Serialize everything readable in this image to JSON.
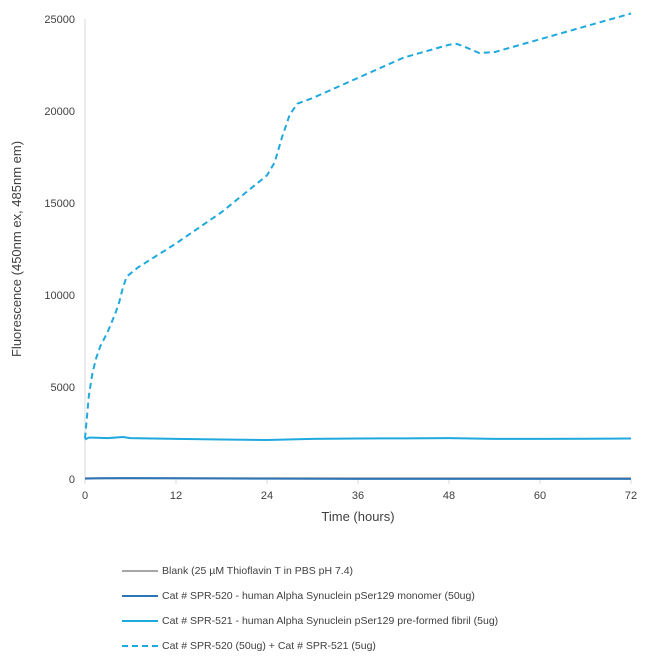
{
  "chart_data": {
    "type": "line",
    "xlabel": "Time (hours)",
    "ylabel": "Fluorescence (450nm ex, 485nm em)",
    "xlim": [
      0,
      72
    ],
    "ylim": [
      0,
      25000
    ],
    "xticks": [
      0,
      12,
      24,
      36,
      48,
      60,
      72
    ],
    "yticks": [
      0,
      5000,
      10000,
      15000,
      20000,
      25000
    ],
    "grid": false,
    "legend_position": "bottom",
    "series": [
      {
        "name": "Blank (25 µM Thioflavin T in PBS pH 7.4)",
        "color": "#a6a6a6",
        "dash": "solid",
        "points": [
          [
            0,
            40
          ],
          [
            12,
            40
          ],
          [
            24,
            40
          ],
          [
            36,
            40
          ],
          [
            48,
            40
          ],
          [
            60,
            40
          ],
          [
            72,
            40
          ]
        ]
      },
      {
        "name": "Cat # SPR-520 - human Alpha Synuclein pSer129 monomer (50ug)",
        "color": "#2e75b6",
        "dash": "solid",
        "points": [
          [
            0,
            20
          ],
          [
            2,
            40
          ],
          [
            5,
            50
          ],
          [
            12,
            40
          ],
          [
            24,
            20
          ],
          [
            36,
            10
          ],
          [
            48,
            10
          ],
          [
            60,
            10
          ],
          [
            72,
            10
          ]
        ]
      },
      {
        "name": "Cat # SPR-521 - human Alpha Synuclein pSer129 pre-formed fibril (5ug)",
        "color": "#1fa9de",
        "dash": "solid",
        "points": [
          [
            0,
            2150
          ],
          [
            0.5,
            2250
          ],
          [
            1,
            2250
          ],
          [
            3,
            2220
          ],
          [
            5,
            2280
          ],
          [
            6,
            2220
          ],
          [
            12,
            2180
          ],
          [
            18,
            2150
          ],
          [
            24,
            2120
          ],
          [
            30,
            2180
          ],
          [
            36,
            2200
          ],
          [
            42,
            2210
          ],
          [
            48,
            2220
          ],
          [
            54,
            2180
          ],
          [
            60,
            2180
          ],
          [
            66,
            2190
          ],
          [
            72,
            2200
          ]
        ]
      },
      {
        "name": "Cat # SPR-520 (50ug) + Cat # SPR-521 (5ug)",
        "color": "#1fa9de",
        "dash": "dashed",
        "points": [
          [
            0,
            2200
          ],
          [
            0.5,
            4500
          ],
          [
            1,
            5800
          ],
          [
            1.5,
            6600
          ],
          [
            2,
            7200
          ],
          [
            3,
            8000
          ],
          [
            4,
            9000
          ],
          [
            4.5,
            9600
          ],
          [
            5,
            10400
          ],
          [
            5.5,
            11000
          ],
          [
            7,
            11500
          ],
          [
            12,
            12800
          ],
          [
            18,
            14500
          ],
          [
            24,
            16500
          ],
          [
            25,
            17200
          ],
          [
            26,
            18600
          ],
          [
            27,
            19800
          ],
          [
            28,
            20400
          ],
          [
            30,
            20700
          ],
          [
            36,
            21800
          ],
          [
            42,
            22900
          ],
          [
            48,
            23600
          ],
          [
            49,
            23650
          ],
          [
            50,
            23500
          ],
          [
            52,
            23150
          ],
          [
            54,
            23200
          ],
          [
            60,
            23900
          ],
          [
            66,
            24600
          ],
          [
            72,
            25300
          ]
        ]
      }
    ]
  }
}
